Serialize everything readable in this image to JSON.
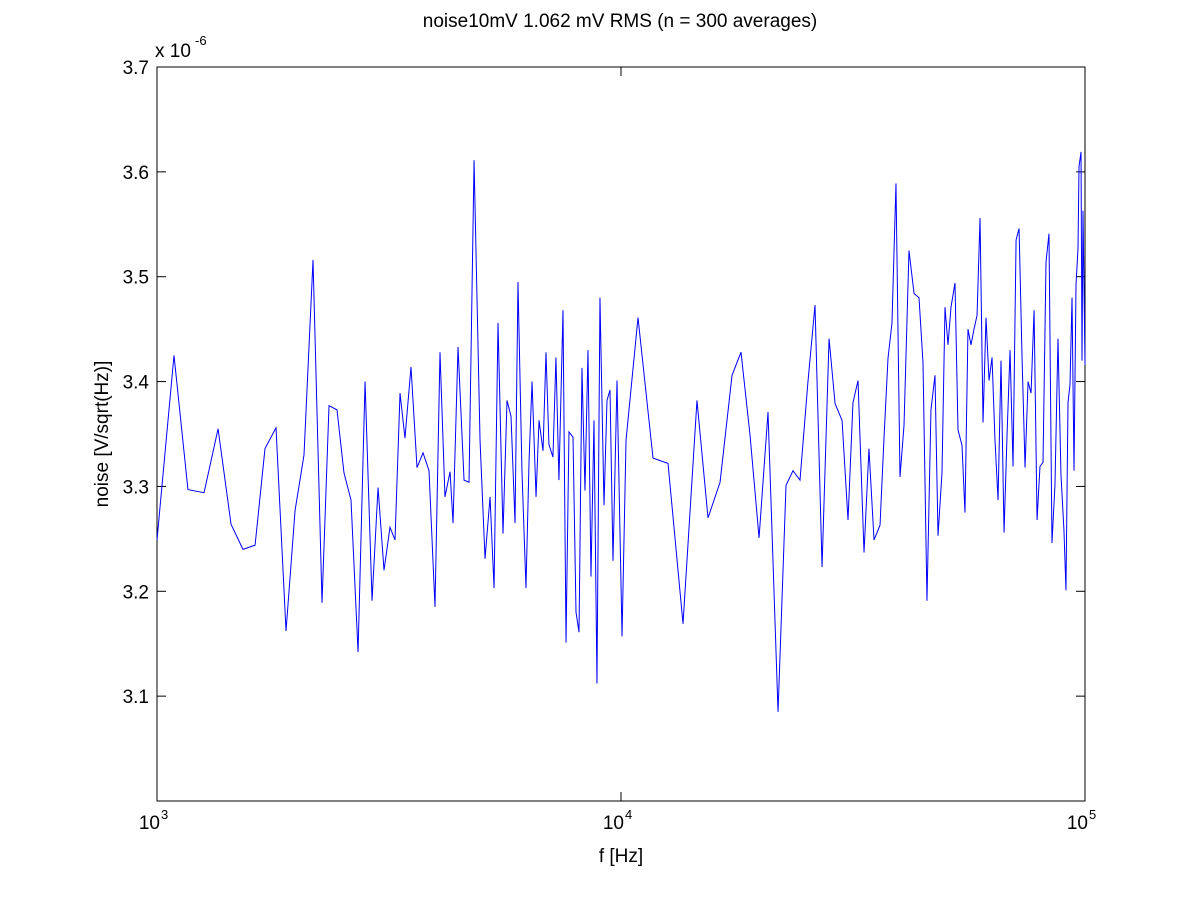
{
  "chart_data": {
    "type": "line",
    "title": "noise10mV 1.062 mV RMS (n = 300 averages)",
    "x_label": "f [Hz]",
    "y_label": "noise [V/sqrt(Hz)]",
    "y_multiplier": {
      "base": "x 10",
      "exponent": "-6"
    },
    "x_scale": "log",
    "color": "#0000ff",
    "xlim": [
      1000,
      100000
    ],
    "xticks": [
      {
        "value": 1000,
        "label": "10",
        "exponent": "3"
      },
      {
        "value": 10000,
        "label": "10",
        "exponent": "4"
      },
      {
        "value": 100000,
        "label": "10",
        "exponent": "5"
      }
    ],
    "ylim": [
      3.0,
      3.7
    ],
    "yticks": [
      3.1,
      3.2,
      3.3,
      3.4,
      3.5,
      3.6,
      3.7
    ],
    "x": [
      1000,
      1088,
      1166,
      1263,
      1354,
      1444,
      1532,
      1627,
      1709,
      1805,
      1897,
      1984,
      2074,
      2169,
      2268,
      2348,
      2443,
      2529,
      2619,
      2712,
      2808,
      2907,
      2995,
      3085,
      3178,
      3258,
      3340,
      3423,
      3527,
      3634,
      3744,
      3857,
      3973,
      4073,
      4175,
      4281,
      4345,
      4454,
      4589,
      4704,
      4823,
      4968,
      5093,
      5221,
      5326,
      5432,
      5568,
      5680,
      5794,
      5910,
      5998,
      6117,
      6240,
      6336,
      6431,
      6560,
      6658,
      6791,
      6892,
      6994,
      7134,
      7241,
      7349,
      7499,
      7612,
      7725,
      7881,
      7999,
      8119,
      8239,
      8363,
      8489,
      8616,
      8745,
      8876,
      9009,
      9191,
      9329,
      9469,
      9611,
      9804,
      10051,
      10252,
      10880,
      11722,
      12628,
      13604,
      14580,
      15400,
      16350,
      17350,
      18140,
      18970,
      19840,
      20740,
      21800,
      22680,
      23480,
      24310,
      25290,
      26190,
      27120,
      28080,
      28930,
      29950,
      30850,
      31620,
      32420,
      33400,
      34230,
      35100,
      36160,
      36880,
      37620,
      38370,
      39140,
      39930,
      40730,
      41750,
      42810,
      43880,
      44760,
      45650,
      46560,
      47500,
      48220,
      49180,
      49920,
      50670,
      51430,
      52460,
      53250,
      54320,
      55120,
      55950,
      56790,
      57650,
      58520,
      59400,
      60290,
      61190,
      62110,
      63040,
      63980,
      64950,
      65920,
      66910,
      67920,
      68940,
      69970,
      71030,
      72090,
      73170,
      74270,
      75390,
      76510,
      77670,
      78830,
      79980,
      81190,
      82410,
      83630,
      84880,
      86150,
      87450,
      88760,
      90090,
      90990,
      91910,
      92820,
      93760,
      94690,
      95630,
      96590,
      97070,
      98040,
      98520,
      99010,
      100000
    ],
    "values": [
      3.249,
      3.425,
      3.297,
      3.294,
      3.355,
      3.264,
      3.24,
      3.244,
      3.336,
      3.356,
      3.162,
      3.277,
      3.33,
      3.516,
      3.189,
      3.377,
      3.373,
      3.313,
      3.287,
      3.142,
      3.4,
      3.191,
      3.299,
      3.22,
      3.261,
      3.249,
      3.389,
      3.346,
      3.414,
      3.318,
      3.332,
      3.315,
      3.185,
      3.428,
      3.29,
      3.314,
      3.265,
      3.433,
      3.306,
      3.304,
      3.611,
      3.344,
      3.231,
      3.29,
      3.203,
      3.456,
      3.255,
      3.382,
      3.367,
      3.265,
      3.495,
      3.315,
      3.203,
      3.324,
      3.4,
      3.29,
      3.363,
      3.334,
      3.428,
      3.34,
      3.328,
      3.423,
      3.306,
      3.468,
      3.151,
      3.352,
      3.347,
      3.18,
      3.161,
      3.413,
      3.296,
      3.43,
      3.214,
      3.363,
      3.112,
      3.48,
      3.282,
      3.382,
      3.392,
      3.229,
      3.401,
      3.157,
      3.344,
      3.461,
      3.327,
      3.322,
      3.169,
      3.382,
      3.27,
      3.304,
      3.406,
      3.428,
      3.349,
      3.251,
      3.371,
      3.085,
      3.301,
      3.315,
      3.306,
      3.4,
      3.473,
      3.223,
      3.441,
      3.379,
      3.363,
      3.268,
      3.38,
      3.401,
      3.237,
      3.336,
      3.249,
      3.263,
      3.346,
      3.422,
      3.456,
      3.589,
      3.309,
      3.358,
      3.525,
      3.484,
      3.48,
      3.418,
      3.191,
      3.373,
      3.406,
      3.253,
      3.313,
      3.471,
      3.435,
      3.471,
      3.494,
      3.354,
      3.339,
      3.275,
      3.45,
      3.435,
      3.45,
      3.463,
      3.556,
      3.361,
      3.461,
      3.401,
      3.423,
      3.344,
      3.287,
      3.42,
      3.256,
      3.349,
      3.43,
      3.319,
      3.535,
      3.546,
      3.423,
      3.318,
      3.4,
      3.389,
      3.468,
      3.268,
      3.319,
      3.323,
      3.514,
      3.541,
      3.246,
      3.301,
      3.441,
      3.311,
      3.258,
      3.201,
      3.38,
      3.397,
      3.48,
      3.315,
      3.492,
      3.527,
      3.605,
      3.619,
      3.42,
      3.563,
      3.416
    ]
  }
}
